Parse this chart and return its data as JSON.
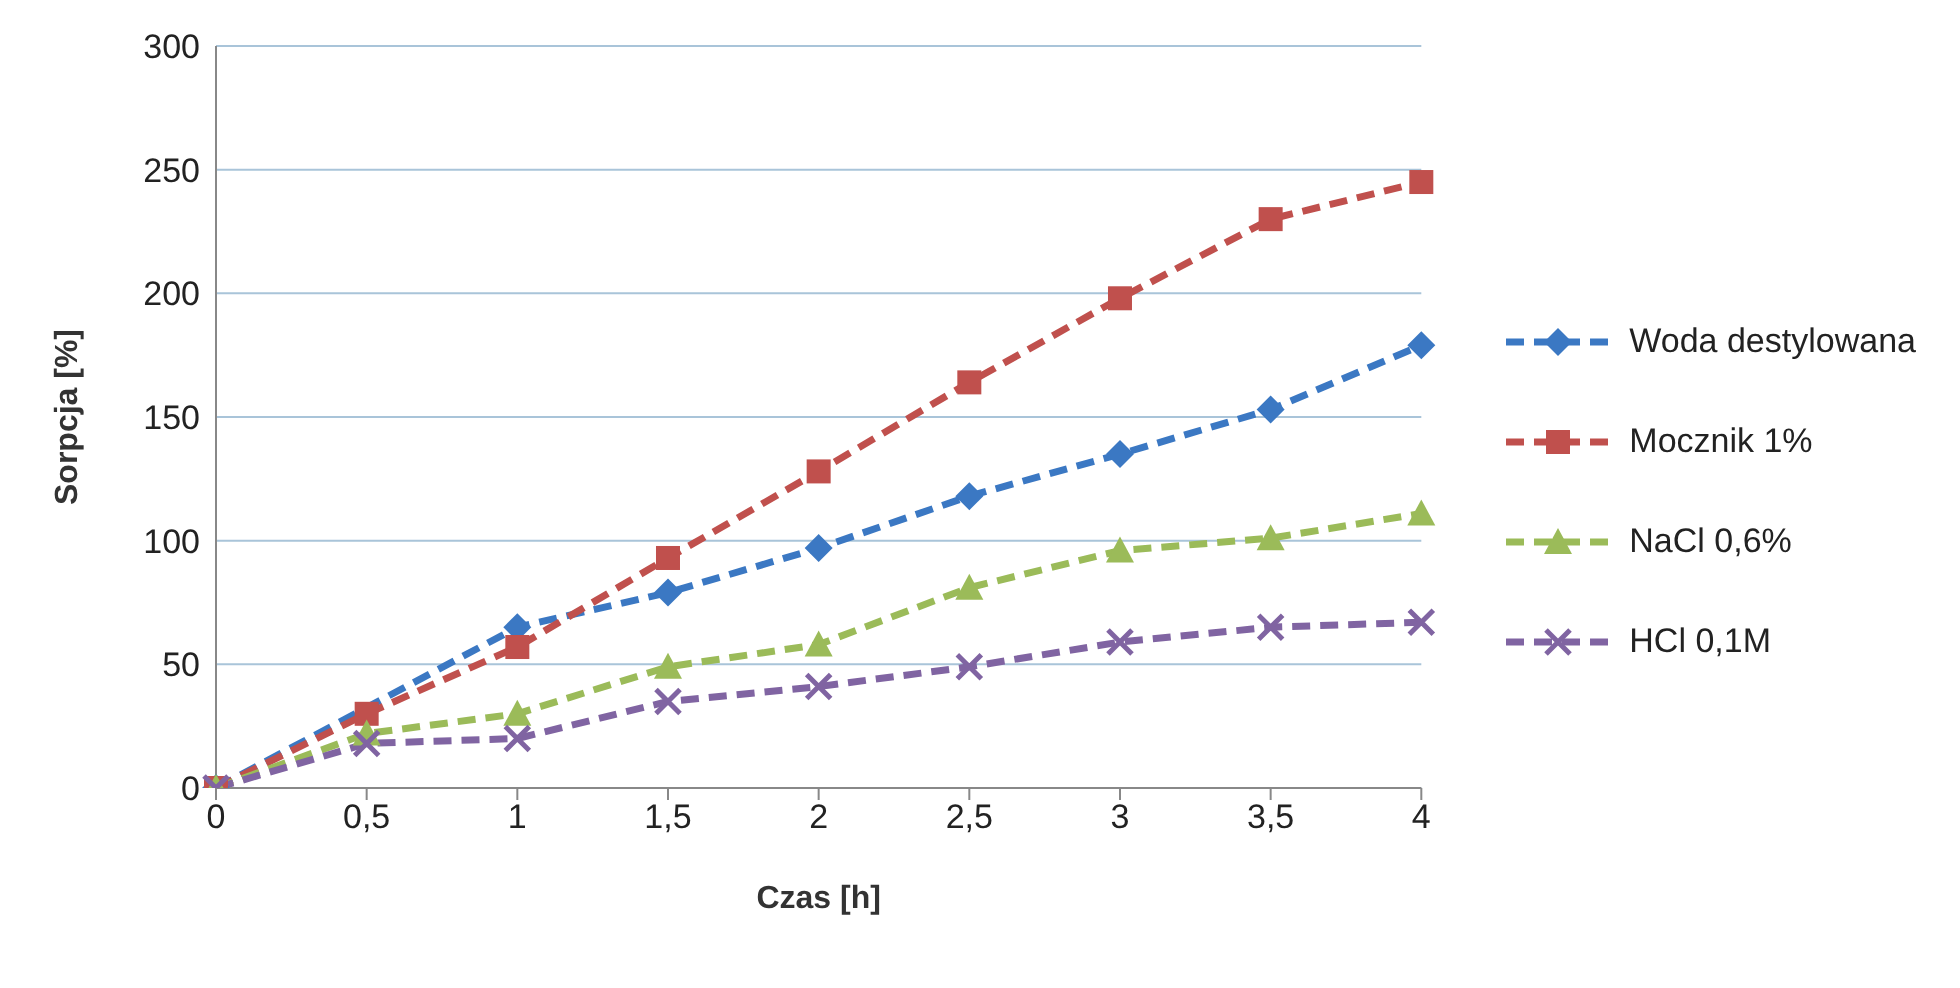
{
  "chart_data": {
    "type": "line",
    "xlabel": "Czas [h]",
    "ylabel": "Sorpcja [%]",
    "categories": [
      "0",
      "0,5",
      "1",
      "1,5",
      "2",
      "2,5",
      "3",
      "3,5",
      "4"
    ],
    "series": [
      {
        "name": "Woda destylowana",
        "color": "#3b78c3",
        "marker": "diamond",
        "values": [
          0,
          null,
          65,
          79,
          97,
          118,
          135,
          153,
          179
        ]
      },
      {
        "name": "Mocznik 1%",
        "color": "#c0504d",
        "marker": "square",
        "values": [
          0,
          30,
          57,
          93,
          128,
          164,
          198,
          230,
          245
        ]
      },
      {
        "name": "NaCl 0,6%",
        "color": "#9bbb59",
        "marker": "triangle",
        "values": [
          0,
          22,
          30,
          49,
          58,
          81,
          96,
          101,
          111
        ]
      },
      {
        "name": "HCl 0,1M",
        "color": "#8064a2",
        "marker": "cross",
        "values": [
          0,
          18,
          20,
          35,
          41,
          49,
          59,
          65,
          67
        ]
      }
    ],
    "ylim": [
      0,
      300
    ],
    "yticks": [
      0,
      50,
      100,
      150,
      200,
      250,
      300
    ],
    "grid": "y",
    "legend": "right",
    "line_style": "dashed"
  }
}
